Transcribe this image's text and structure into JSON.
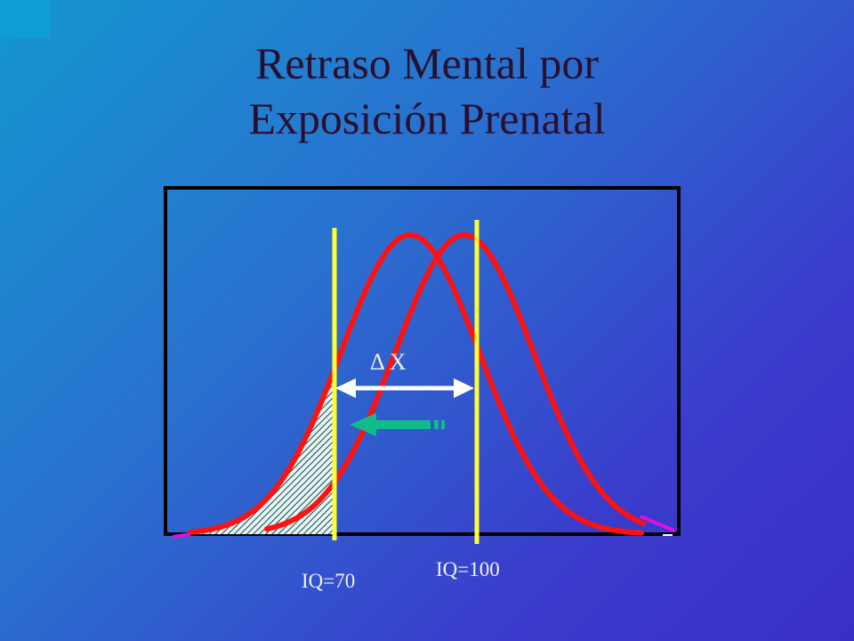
{
  "slide": {
    "title_line1": "Retraso Mental por",
    "title_line2": "Exposición Prenatal"
  },
  "diagram": {
    "delta_label": "Δ X",
    "iq_low_label": "IQ=70",
    "iq_mean_label": "IQ=100"
  },
  "colors": {
    "curve": "#ff1111",
    "marker_line": "#ffff33",
    "shift_arrow": "#11bb88",
    "delta_arrow": "#ffffff",
    "frame": "#000000"
  }
}
